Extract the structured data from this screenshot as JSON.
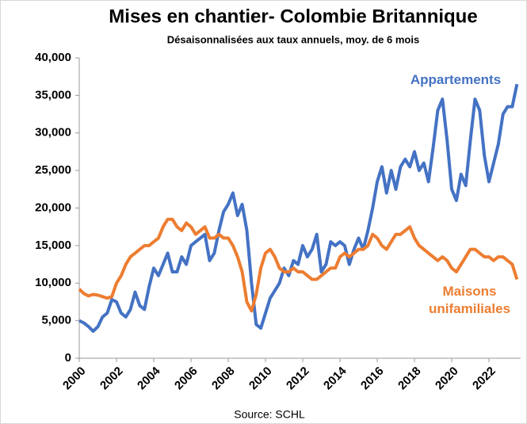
{
  "chart_data": {
    "type": "line",
    "title": "Mises en chantier- Colombie Britannique",
    "subtitle": "Désaisonnalisées aux taux annuels, moy. de 6 mois",
    "source": "Source: SCHL",
    "x": [
      2000,
      2000.25,
      2000.5,
      2000.75,
      2001,
      2001.25,
      2001.5,
      2001.75,
      2002,
      2002.25,
      2002.5,
      2002.75,
      2003,
      2003.25,
      2003.5,
      2003.75,
      2004,
      2004.25,
      2004.5,
      2004.75,
      2005,
      2005.25,
      2005.5,
      2005.75,
      2006,
      2006.25,
      2006.5,
      2006.75,
      2007,
      2007.25,
      2007.5,
      2007.75,
      2008,
      2008.25,
      2008.5,
      2008.75,
      2009,
      2009.25,
      2009.5,
      2009.75,
      2010,
      2010.25,
      2010.5,
      2010.75,
      2011,
      2011.25,
      2011.5,
      2011.75,
      2012,
      2012.25,
      2012.5,
      2012.75,
      2013,
      2013.25,
      2013.5,
      2013.75,
      2014,
      2014.25,
      2014.5,
      2014.75,
      2015,
      2015.25,
      2015.5,
      2015.75,
      2016,
      2016.25,
      2016.5,
      2016.75,
      2017,
      2017.25,
      2017.5,
      2017.75,
      2018,
      2018.25,
      2018.5,
      2018.75,
      2019,
      2019.25,
      2019.5,
      2019.75,
      2020,
      2020.25,
      2020.5,
      2020.75,
      2021,
      2021.25,
      2021.5,
      2021.75,
      2022,
      2022.25,
      2022.5,
      2022.75,
      2023,
      2023.25,
      2023.5
    ],
    "series": [
      {
        "name": "Appartements",
        "color": "#4472c4",
        "values": [
          5000,
          4700,
          4200,
          3600,
          4200,
          5500,
          6000,
          7800,
          7500,
          6000,
          5500,
          6500,
          8800,
          7000,
          6500,
          9500,
          12000,
          11000,
          12500,
          14000,
          11500,
          11500,
          13500,
          12500,
          15000,
          15500,
          16000,
          16500,
          13000,
          14000,
          17000,
          19500,
          20500,
          22000,
          19000,
          20500,
          17000,
          10000,
          4500,
          4000,
          6000,
          8000,
          9000,
          10000,
          12000,
          11000,
          13000,
          12500,
          15000,
          13500,
          14500,
          16500,
          11500,
          12500,
          15500,
          15000,
          15500,
          15000,
          12500,
          14500,
          16000,
          14500,
          17000,
          20000,
          23500,
          25500,
          22000,
          25000,
          22500,
          25500,
          26500,
          25500,
          27500,
          25000,
          26000,
          23500,
          28000,
          33000,
          34500,
          29000,
          22500,
          21000,
          24500,
          23000,
          29000,
          34500,
          33000,
          27000,
          23500,
          26000,
          28500,
          32500,
          33500,
          33500,
          36500
        ]
      },
      {
        "name": "Maisons unifamiliales",
        "color": "#ed7d31",
        "values": [
          9200,
          8600,
          8300,
          8500,
          8400,
          8200,
          8000,
          8200,
          10000,
          11000,
          12500,
          13500,
          14000,
          14500,
          15000,
          15000,
          15500,
          16000,
          17500,
          18500,
          18500,
          17500,
          17000,
          18000,
          17500,
          16500,
          17000,
          17500,
          16000,
          16000,
          16500,
          16000,
          16000,
          15000,
          13500,
          11500,
          7500,
          6300,
          8500,
          12000,
          14000,
          14500,
          13500,
          12000,
          11500,
          11500,
          12000,
          11500,
          11500,
          11000,
          10500,
          10500,
          11000,
          11500,
          12000,
          12000,
          13500,
          14000,
          13500,
          14000,
          14500,
          14500,
          15000,
          16500,
          16000,
          15000,
          14500,
          15500,
          16500,
          16500,
          17000,
          17500,
          16000,
          15000,
          14500,
          14000,
          13500,
          13000,
          13500,
          13000,
          12000,
          11500,
          12500,
          13500,
          14500,
          14500,
          14000,
          13500,
          13500,
          13000,
          13500,
          13500,
          13000,
          12500,
          10500
        ]
      }
    ],
    "xlim": [
      2000,
      2023.7
    ],
    "xticks": [
      2000,
      2002,
      2004,
      2006,
      2008,
      2010,
      2012,
      2014,
      2016,
      2018,
      2020,
      2022
    ],
    "ylim": [
      0,
      40000
    ],
    "yticks": [
      0,
      {
        "value": 5000,
        "label": "5,000"
      },
      {
        "value": 10000,
        "label": "10,000"
      },
      {
        "value": 15000,
        "label": "15,000"
      },
      {
        "value": 20000,
        "label": "20,000"
      },
      {
        "value": 25000,
        "label": "25,000"
      },
      {
        "value": 30000,
        "label": "30,000"
      },
      {
        "value": 35000,
        "label": "35,000"
      },
      {
        "value": 40000,
        "label": "40,000"
      }
    ],
    "grid": false
  }
}
